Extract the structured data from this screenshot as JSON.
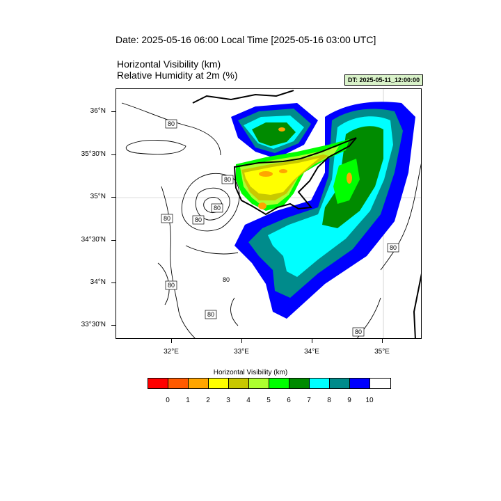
{
  "title": {
    "date_line": "Date: 2025-05-16  06:00 Local Time [2025-05-16  03:00 UTC]",
    "var1": "Horizontal Visibility   (km)",
    "var2": "Relative Humidity at 2m   (%)",
    "dt": "DT: 2025-05-11_12:00:00"
  },
  "axes": {
    "lat_labels": [
      "36°N",
      "35°30'N",
      "35°N",
      "34°30'N",
      "34°N",
      "33°30'N"
    ],
    "lon_labels": [
      "32°E",
      "33°E",
      "34°E",
      "35°E"
    ]
  },
  "contour_labels": [
    "80",
    "80",
    "80",
    "80",
    "80",
    "80",
    "80",
    "80",
    "80",
    "80"
  ],
  "legend": {
    "title": "Horizontal Visibility  (km)",
    "ticks": [
      "0",
      "1",
      "2",
      "3",
      "4",
      "5",
      "6",
      "7",
      "8",
      "9",
      "10"
    ],
    "colors": [
      "#ff0000",
      "#ff5a00",
      "#ffa500",
      "#ffff00",
      "#c8c800",
      "#adff2f",
      "#00ff00",
      "#008b00",
      "#00ffff",
      "#008b8b",
      "#0000ff",
      "#ffffff"
    ]
  }
}
